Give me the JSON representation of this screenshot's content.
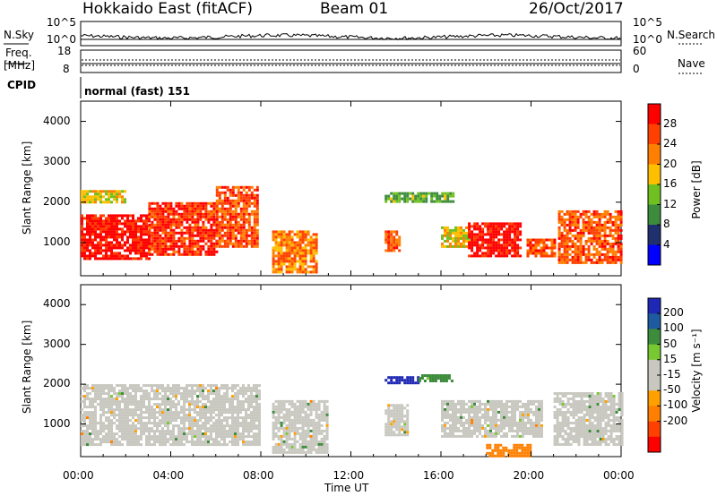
{
  "header": {
    "station": "Hokkaido East (fitACF)",
    "beam": "Beam 01",
    "date": "26/Oct/2017"
  },
  "noise_panel": {
    "left_label": "N.Sky",
    "right_label": "N.Search",
    "left_ticks": [
      "10^5",
      "10^0"
    ],
    "right_ticks": [
      "10^5",
      "10^0"
    ]
  },
  "freq_panel": {
    "left_label_line1": "Freq.",
    "left_label_line2": "[MHz]",
    "right_label": "Nave",
    "left_ticks": [
      "18",
      "8"
    ],
    "right_ticks": [
      "60",
      "0"
    ]
  },
  "cpid_panel": {
    "label": "CPID",
    "text": "normal (fast) 151"
  },
  "x_axis": {
    "label": "Time UT",
    "ticks": [
      "00:00",
      "04:00",
      "08:00",
      "12:00",
      "16:00",
      "20:00",
      "00:00"
    ]
  },
  "power_panel": {
    "ylabel": "Slant Range [km]",
    "yticks": [
      "4000",
      "3000",
      "2000",
      "1000"
    ],
    "colorbar_label": "Power [dB]",
    "colorbar_ticks": [
      "28",
      "24",
      "20",
      "16",
      "12",
      "8",
      "4"
    ],
    "colors": [
      "#ff0000",
      "#ff4000",
      "#ff7f00",
      "#ffbf00",
      "#6fc020",
      "#3c8c3c",
      "#20306e",
      "#0000ff"
    ]
  },
  "velocity_panel": {
    "ylabel": "Slant Range [km]",
    "yticks": [
      "4000",
      "3000",
      "2000",
      "1000"
    ],
    "colorbar_label": "Velocity [m s⁻¹]",
    "colorbar_ticks": [
      "200",
      "100",
      "50",
      "15",
      "-15",
      "-50",
      "-100",
      "-200"
    ],
    "colors": [
      "#1e28b4",
      "#1e5aa0",
      "#3c8c3c",
      "#78c832",
      "#c8c8c0",
      "#c8c8c0",
      "#ffa000",
      "#ff8000",
      "#ff4000",
      "#ff0000"
    ]
  },
  "chart_data": [
    {
      "type": "heatmap",
      "title": "Power [dB]",
      "xlabel": "Time UT",
      "ylabel": "Slant Range [km]",
      "xlim": [
        "00:00",
        "24:00"
      ],
      "ylim": [
        180,
        4500
      ],
      "clim": [
        0,
        30
      ],
      "regions": [
        {
          "t": [
            0.0,
            3.0
          ],
          "range": [
            600,
            1700
          ],
          "power": 28
        },
        {
          "t": [
            3.0,
            6.0
          ],
          "range": [
            700,
            2000
          ],
          "power": 26
        },
        {
          "t": [
            6.0,
            7.8
          ],
          "range": [
            900,
            2400
          ],
          "power": 24
        },
        {
          "t": [
            8.5,
            10.5
          ],
          "range": [
            300,
            1300
          ],
          "power": 22
        },
        {
          "t": [
            13.5,
            14.2
          ],
          "range": [
            800,
            1300
          ],
          "power": 24
        },
        {
          "t": [
            16.0,
            17.2
          ],
          "range": [
            900,
            1400
          ],
          "power": 18
        },
        {
          "t": [
            17.2,
            19.5
          ],
          "range": [
            700,
            1500
          ],
          "power": 28
        },
        {
          "t": [
            19.8,
            21.0
          ],
          "range": [
            700,
            1100
          ],
          "power": 24
        },
        {
          "t": [
            21.2,
            24.0
          ],
          "range": [
            500,
            1800
          ],
          "power": 24
        },
        {
          "t": [
            13.5,
            16.5
          ],
          "range": [
            2050,
            2250
          ],
          "power": 14
        },
        {
          "t": [
            0.0,
            2.0
          ],
          "range": [
            2000,
            2300
          ],
          "power": 18
        }
      ]
    },
    {
      "type": "heatmap",
      "title": "Velocity [m s⁻¹]",
      "xlabel": "Time UT",
      "ylabel": "Slant Range [km]",
      "xlim": [
        "00:00",
        "24:00"
      ],
      "ylim": [
        180,
        4500
      ],
      "clim": [
        -250,
        250
      ],
      "regions": [
        {
          "t": [
            0.0,
            8.0
          ],
          "range": [
            500,
            2000
          ],
          "velocity": 0
        },
        {
          "t": [
            8.5,
            11.0
          ],
          "range": [
            300,
            1600
          ],
          "velocity": 0
        },
        {
          "t": [
            13.5,
            14.5
          ],
          "range": [
            700,
            1500
          ],
          "velocity": 0
        },
        {
          "t": [
            16.0,
            20.5
          ],
          "range": [
            700,
            1600
          ],
          "velocity": 0
        },
        {
          "t": [
            21.0,
            24.0
          ],
          "range": [
            500,
            1800
          ],
          "velocity": 0
        },
        {
          "t": [
            13.5,
            15.0
          ],
          "range": [
            2050,
            2200
          ],
          "velocity": 200
        },
        {
          "t": [
            15.0,
            16.5
          ],
          "range": [
            2050,
            2250
          ],
          "velocity": 60
        },
        {
          "t": [
            18.0,
            20.0
          ],
          "range": [
            200,
            500
          ],
          "velocity": -60
        }
      ]
    }
  ]
}
